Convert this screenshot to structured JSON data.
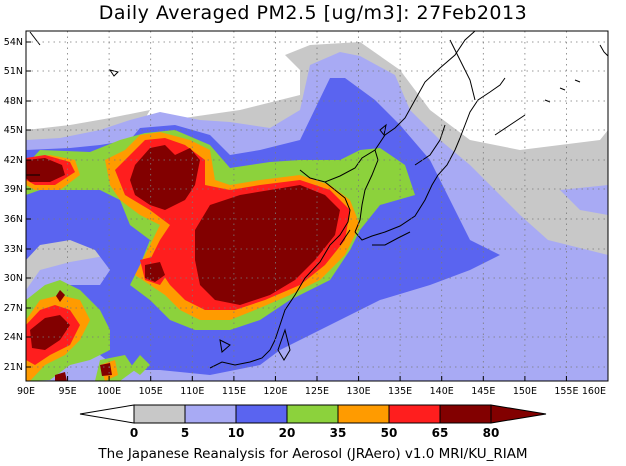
{
  "title": "Daily Averaged PM2.5 [ug/m3]: 27Feb2013",
  "credit": "The Japanese Reanalysis for Aerosol (JRAero) v1.0 MRI/KU_RIAM",
  "lat_labels": [
    "54N",
    "51N",
    "48N",
    "45N",
    "42N",
    "39N",
    "36N",
    "33N",
    "30N",
    "27N",
    "24N",
    "21N"
  ],
  "lon_labels": [
    "90E",
    "95E",
    "100E",
    "105E",
    "110E",
    "115E",
    "120E",
    "125E",
    "130E",
    "135E",
    "140E",
    "145E",
    "150E",
    "155E",
    "160E"
  ],
  "colorbar": {
    "levels": [
      "0",
      "5",
      "10",
      "20",
      "35",
      "50",
      "65",
      "80"
    ],
    "colors": [
      "#ffffff",
      "#c8c8c8",
      "#a8aaf4",
      "#5a64f0",
      "#8cd23c",
      "#ff9b00",
      "#ff1e1e",
      "#820000"
    ]
  }
}
